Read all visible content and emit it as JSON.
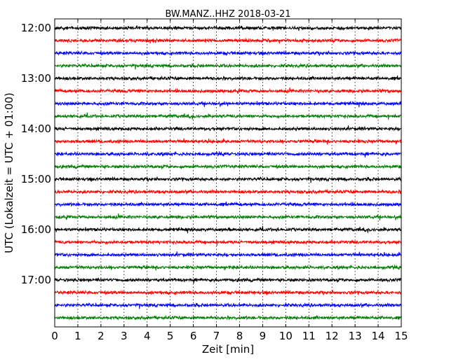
{
  "chart_data": {
    "type": "line",
    "title": "BW.MANZ..HHZ 2018-03-21",
    "xlabel": "Zeit  [min]",
    "ylabel": "UTC (Lokalzeit = UTC + 01:00)",
    "xlim": [
      0,
      15
    ],
    "x_ticks": [
      "0",
      "1",
      "2",
      "3",
      "4",
      "5",
      "6",
      "7",
      "8",
      "9",
      "10",
      "11",
      "12",
      "13",
      "14",
      "15"
    ],
    "y_ticks": [
      "12:00",
      "13:00",
      "14:00",
      "15:00",
      "16:00",
      "17:00"
    ],
    "grid": "vertical dotted lines at each minute",
    "series_colors": [
      "#000000",
      "#ff0000",
      "#0000ff",
      "#007f00"
    ],
    "trace_start_times": [
      "12:00",
      "12:15",
      "12:30",
      "12:45",
      "13:00",
      "13:15",
      "13:30",
      "13:45",
      "14:00",
      "14:15",
      "14:30",
      "14:45",
      "15:00",
      "15:15",
      "15:30",
      "15:45",
      "16:00",
      "16:15",
      "16:30",
      "16:45",
      "17:00",
      "17:15",
      "17:30",
      "17:45"
    ],
    "trace_duration_min": 15
  }
}
